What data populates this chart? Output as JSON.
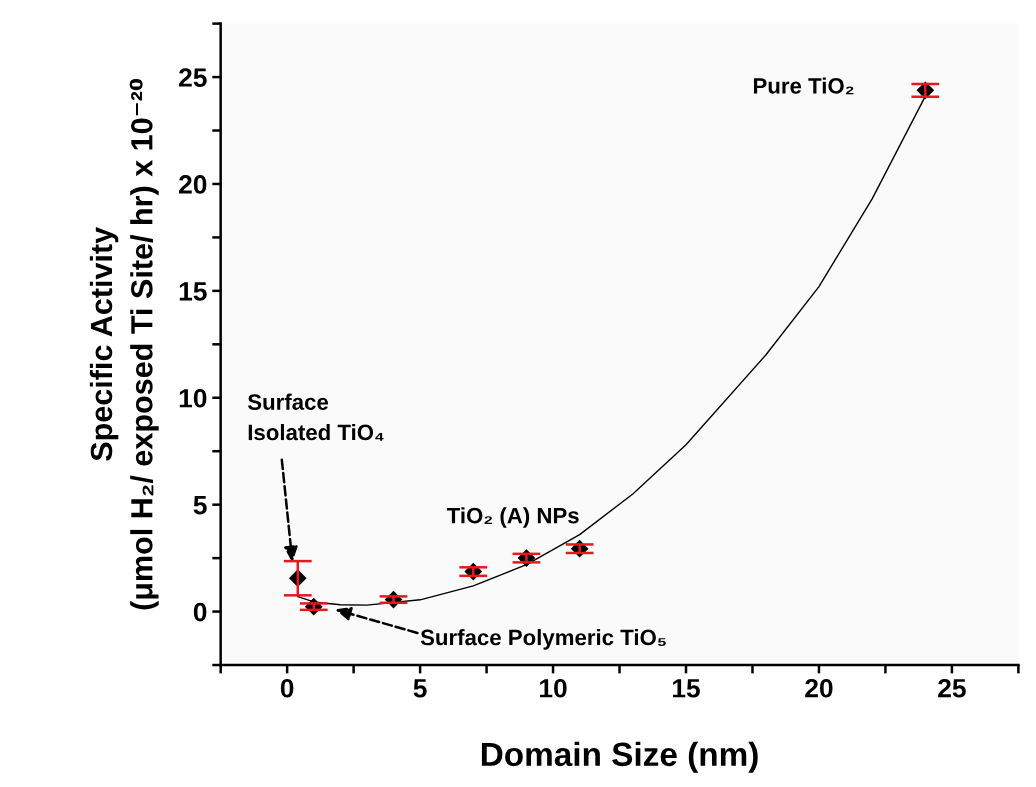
{
  "chart_data": {
    "type": "scatter",
    "xlabel": "Domain Size (nm)",
    "ylabel": "Specific Activity\n(μmol H₂/ exposed Ti Site/ hr) x 10⁻²⁰",
    "xlim": [
      -2.5,
      27.5
    ],
    "ylim": [
      -2.5,
      27.5
    ],
    "xticks": [
      {
        "value": -2.5,
        "label": null
      },
      0,
      {
        "value": 2.5,
        "label": null
      },
      5,
      {
        "value": 7.5,
        "label": null
      },
      10,
      {
        "value": 12.5,
        "label": null
      },
      15,
      {
        "value": 17.5,
        "label": null
      },
      20,
      {
        "value": 22.5,
        "label": null
      },
      25,
      {
        "value": 27.5,
        "label": null
      }
    ],
    "yticks": [
      {
        "value": -2.5,
        "label": null
      },
      0,
      {
        "value": 2.5,
        "label": null
      },
      5,
      {
        "value": 7.5,
        "label": null
      },
      10,
      {
        "value": 12.5,
        "label": null
      },
      15,
      {
        "value": 17.5,
        "label": null
      },
      20,
      {
        "value": 22.5,
        "label": null
      },
      25,
      {
        "value": 27.5,
        "label": null
      }
    ],
    "marker": "diamond",
    "grid": false,
    "legend": false,
    "series": [
      {
        "color": "#000000",
        "x": [
          0.4,
          1,
          4,
          7,
          9,
          11,
          24
        ],
        "values": [
          1.56,
          0.23,
          0.56,
          1.87,
          2.5,
          2.94,
          24.38
        ],
        "errors": [
          0.8,
          0.15,
          0.15,
          0.2,
          0.2,
          0.2,
          0.3
        ]
      },
      {
        "type": "line",
        "color": "#000000",
        "line_style": "solid",
        "marker": "none",
        "x": [
          0.4,
          1,
          2,
          3,
          5,
          7,
          9,
          11,
          13,
          15,
          18,
          20,
          22,
          24
        ],
        "values": [
          0.7,
          0.45,
          0.32,
          0.3,
          0.55,
          1.2,
          2.2,
          3.6,
          5.5,
          7.8,
          12,
          15.2,
          19.3,
          24.1
        ]
      }
    ],
    "annotations": [
      {
        "text": "Surface\nIsolated TiO₄",
        "x": 0.2,
        "y": 2.3
      },
      {
        "text": "Surface Polymeric TiO₅",
        "x": 1.8,
        "y": 0.1
      },
      "TiO₂ (A) NPs",
      "Pure TiO₂"
    ]
  }
}
